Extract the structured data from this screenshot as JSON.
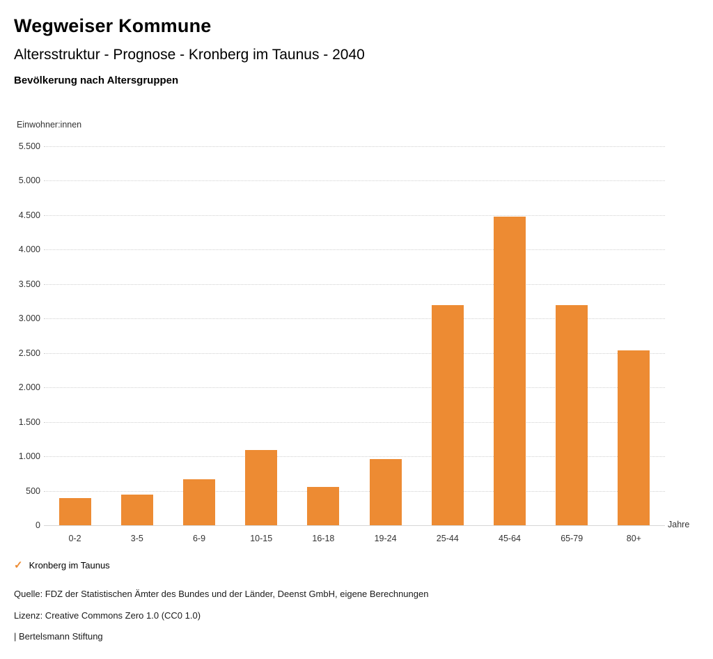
{
  "header": {
    "title": "Wegweiser Kommune",
    "subtitle": "Altersstruktur - Prognose - Kronberg im Taunus - 2040",
    "section_title": "Bevölkerung nach Altersgruppen"
  },
  "chart_data": {
    "type": "bar",
    "title": "Bevölkerung nach Altersgruppen",
    "ylabel": "Einwohner:innen",
    "xlabel": "Jahre",
    "categories": [
      "0-2",
      "3-5",
      "6-9",
      "10-15",
      "16-18",
      "19-24",
      "25-44",
      "45-64",
      "65-79",
      "80+"
    ],
    "series": [
      {
        "name": "Kronberg im Taunus",
        "values": [
          395,
          440,
          665,
          1090,
          555,
          960,
          3200,
          4480,
          3200,
          2540
        ]
      }
    ],
    "ylim": [
      0,
      5500
    ],
    "ytick_step": 500,
    "ytick_labels": [
      "0",
      "500",
      "1.000",
      "1.500",
      "2.000",
      "2.500",
      "3.000",
      "3.500",
      "4.000",
      "4.500",
      "5.000",
      "5.500"
    ],
    "bar_color": "#ED8B33",
    "grid": "horizontal dotted",
    "legend_position": "bottom-left"
  },
  "legend": {
    "marker": "✓",
    "label": "Kronberg im Taunus",
    "marker_color": "#ED8B33"
  },
  "footer": {
    "source": "Quelle: FDZ der Statistischen Ämter des Bundes und der Länder, Deenst GmbH, eigene Berechnungen",
    "license": "Lizenz: Creative Commons Zero 1.0 (CC0 1.0)",
    "attribution": "| Bertelsmann Stiftung"
  }
}
